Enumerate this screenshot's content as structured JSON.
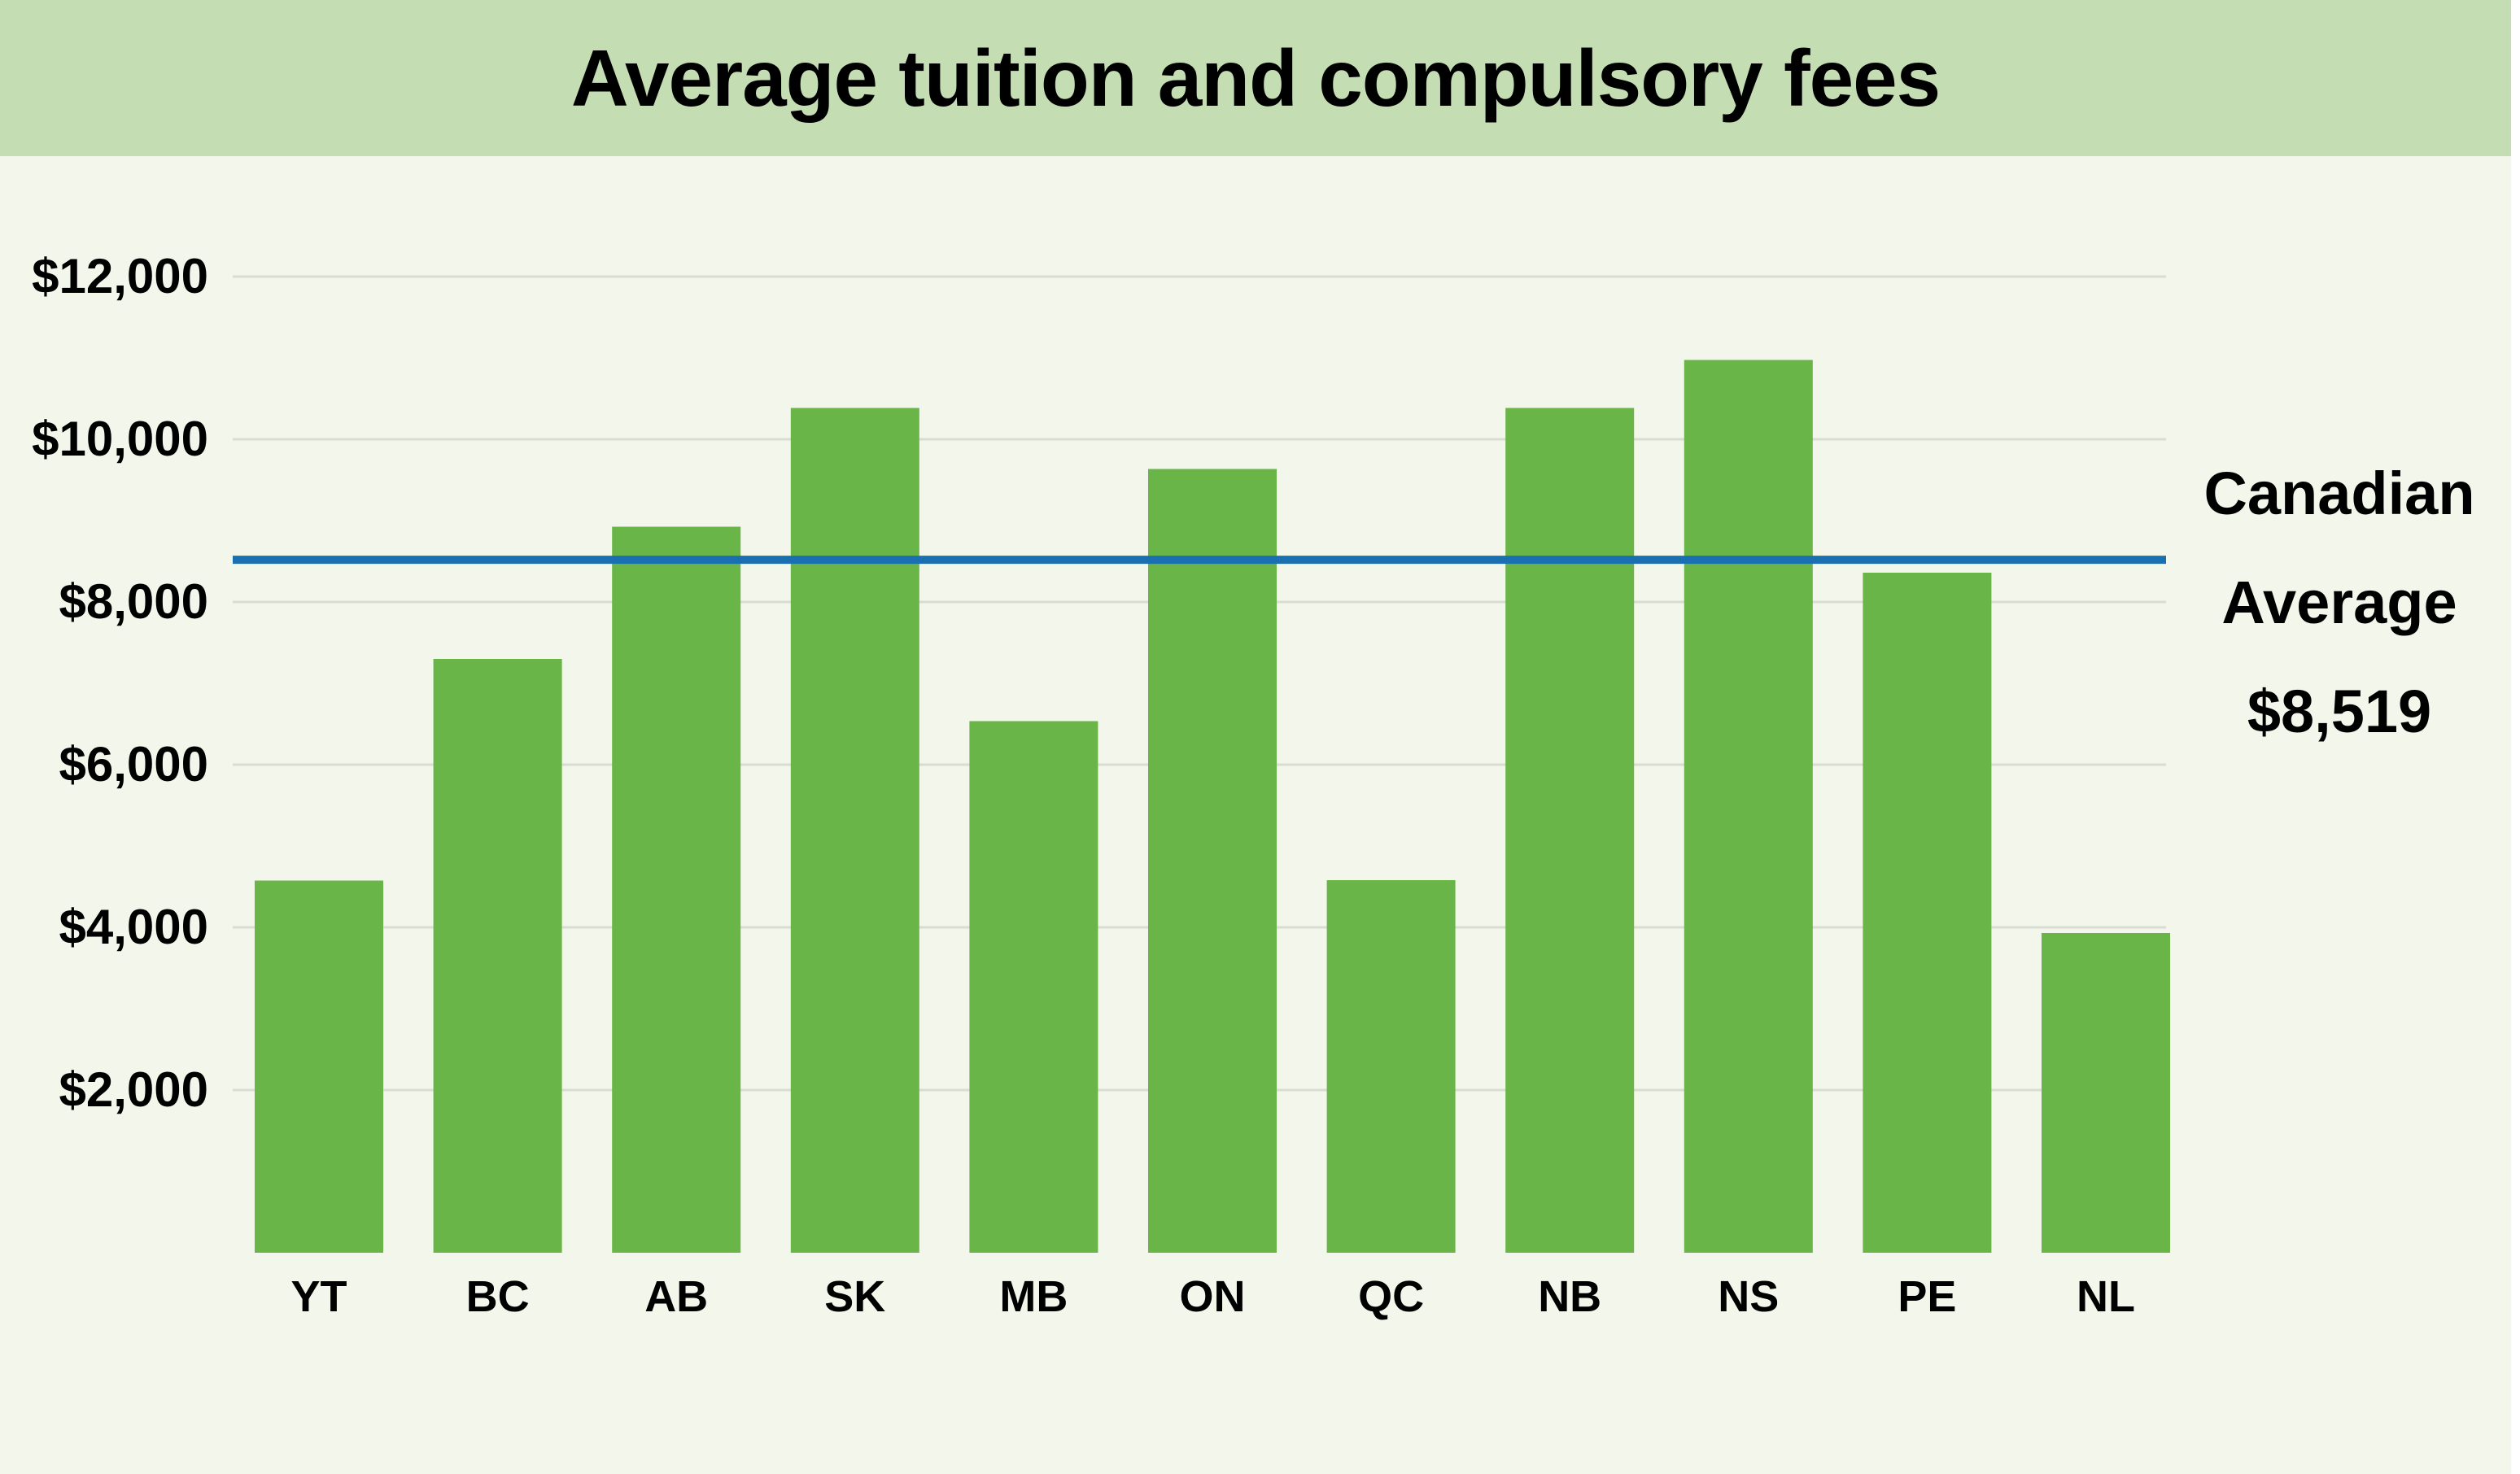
{
  "chart_data": {
    "type": "bar",
    "title": "Average tuition and compulsory fees",
    "categories": [
      "YT",
      "BC",
      "AB",
      "SK",
      "MB",
      "ON",
      "QC",
      "NB",
      "NS",
      "PE",
      "NL"
    ],
    "values": [
      4575,
      7300,
      8925,
      10385,
      6535,
      9635,
      4580,
      10385,
      10975,
      8360,
      3930
    ],
    "y_ticks": [
      2000,
      4000,
      6000,
      8000,
      10000,
      12000
    ],
    "y_tick_labels": [
      "$2,000",
      "$4,000",
      "$6,000",
      "$8,000",
      "$10,000",
      "$12,000"
    ],
    "ylim": [
      0,
      13000
    ],
    "grid": true,
    "xlabel": "",
    "ylabel": "",
    "reference_line": {
      "value": 8519,
      "label_lines": [
        "Canadian",
        "Average",
        "$8,519"
      ]
    },
    "colors": {
      "bar": "#6ab548",
      "reference_line": "#1a6fb0",
      "gridline": "#d9dcd2",
      "title_band": "#c4ddb2",
      "background": "#f3f7eb"
    }
  }
}
